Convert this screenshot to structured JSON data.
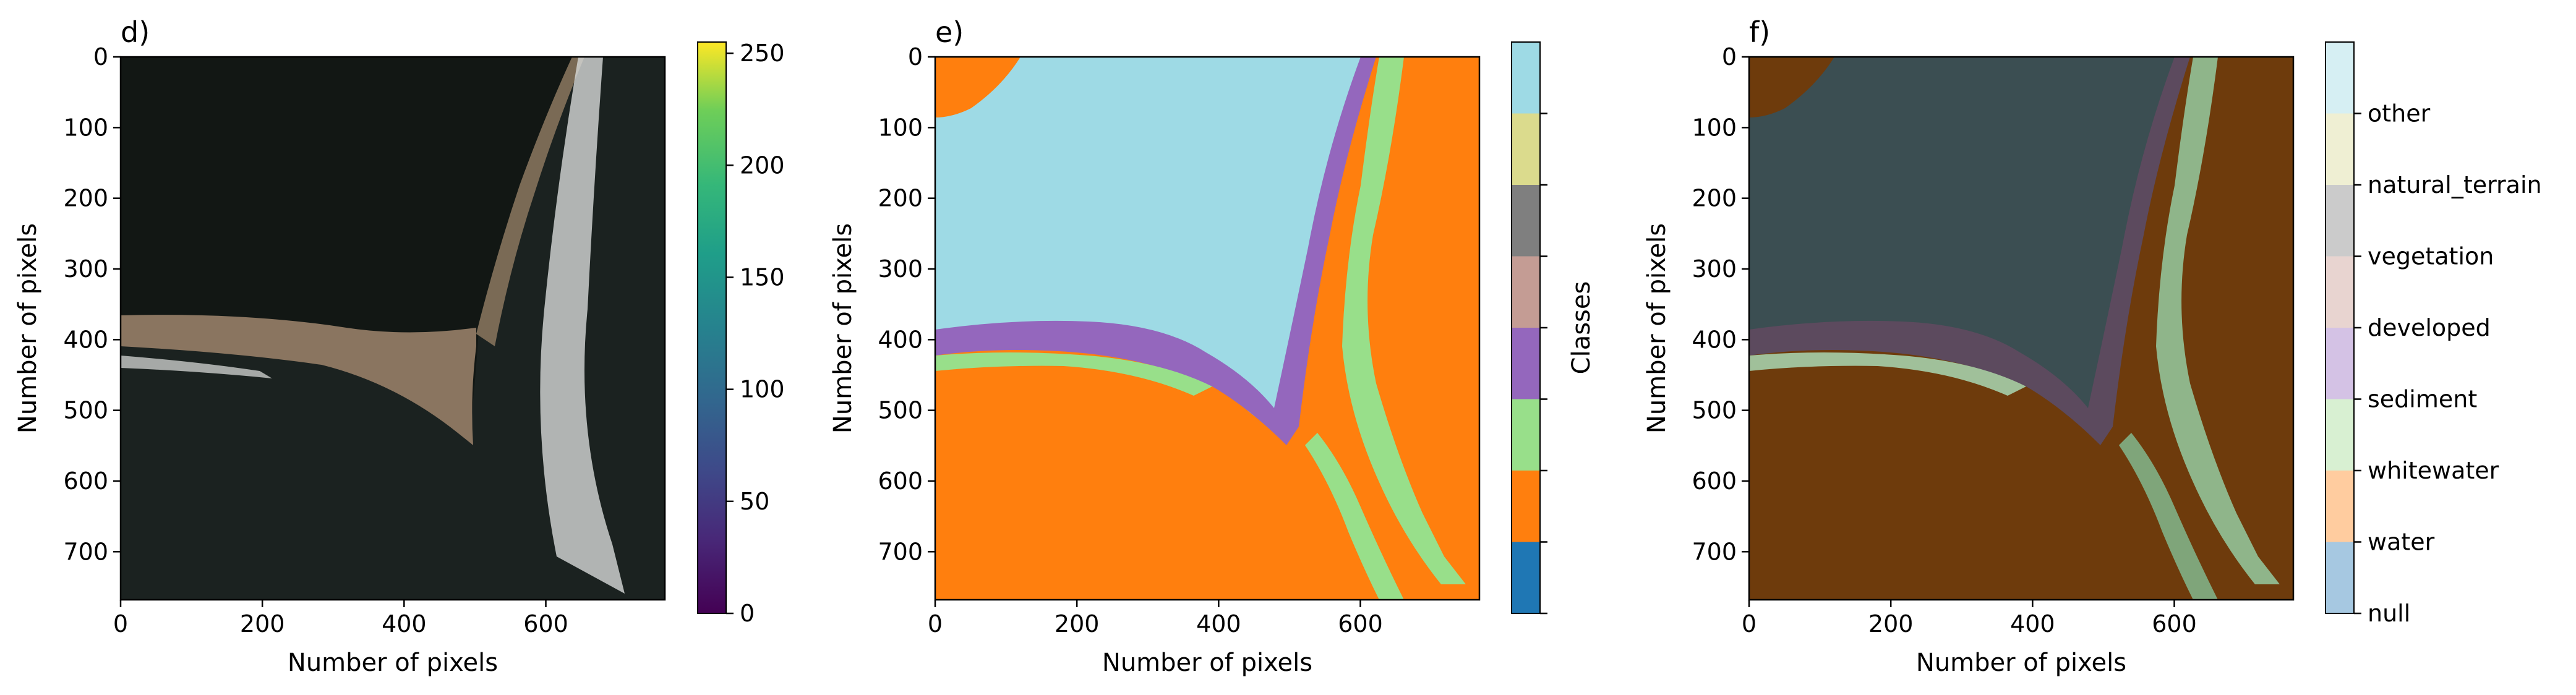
{
  "chart_data": [
    {
      "type": "heatmap",
      "panel": "d",
      "title": "d)",
      "content": "satellite RGB image of coastline",
      "xlabel": "Number of pixels",
      "ylabel": "Number of pixels",
      "xlim": [
        0,
        768
      ],
      "ylim": [
        768,
        0
      ],
      "x_ticks": [
        0,
        200,
        400,
        600
      ],
      "y_ticks": [
        0,
        100,
        200,
        300,
        400,
        500,
        600,
        700
      ],
      "colorbar": {
        "colormap": "viridis",
        "range": [
          0,
          255
        ],
        "ticks": [
          0,
          50,
          100,
          150,
          200,
          250
        ],
        "label": ""
      }
    },
    {
      "type": "heatmap",
      "panel": "e",
      "title": "e)",
      "content": "segmentation label image",
      "xlabel": "Number of pixels",
      "ylabel": "Number of pixels",
      "xlim": [
        0,
        768
      ],
      "ylim": [
        768,
        0
      ],
      "x_ticks": [
        0,
        200,
        400,
        600
      ],
      "y_ticks": [
        0,
        100,
        200,
        300,
        400,
        500,
        600,
        700
      ],
      "colorbar": {
        "label": "Classes",
        "colors": [
          "#1f77b4",
          "#ff7f0e",
          "#98df8a",
          "#9467bd",
          "#c49c94",
          "#7f7f7f",
          "#dbdb8d",
          "#9edae5"
        ]
      }
    },
    {
      "type": "heatmap",
      "panel": "f",
      "title": "f)",
      "content": "segmentation overlaid on image",
      "xlabel": "Number of pixels",
      "ylabel": "Number of pixels",
      "xlim": [
        0,
        768
      ],
      "ylim": [
        768,
        0
      ],
      "x_ticks": [
        0,
        200,
        400,
        600
      ],
      "y_ticks": [
        0,
        100,
        200,
        300,
        400,
        500,
        600,
        700
      ],
      "colorbar": {
        "label": "",
        "classes": [
          "null",
          "water",
          "whitewater",
          "sediment",
          "developed",
          "vegetation",
          "natural_terrain",
          "other"
        ],
        "colors": [
          "#a6c8e1",
          "#ffcc9f",
          "#d8f0d2",
          "#d4c2e5",
          "#e8d4d0",
          "#cbcbcb",
          "#efefd3",
          "#d6eff3"
        ]
      }
    }
  ]
}
